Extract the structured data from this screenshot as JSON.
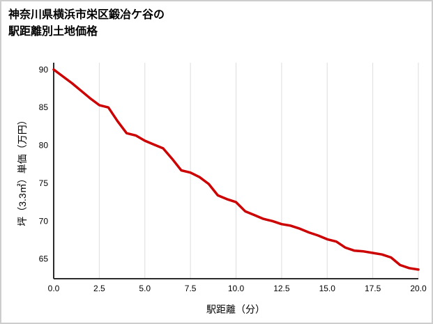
{
  "title": {
    "line1": "神奈川県横浜市栄区鍛冶ケ谷の",
    "line2": "駅距離別土地価格"
  },
  "chart_data": {
    "type": "line",
    "title": "神奈川県横浜市栄区鍛冶ケ谷の駅距離別土地価格",
    "xlabel": "駅距離（分）",
    "ylabel": "坪（3.3㎡）単価（万円）",
    "x": [
      0,
      0.5,
      1,
      1.5,
      2,
      2.5,
      3,
      3.5,
      4,
      4.5,
      5,
      5.5,
      6,
      6.5,
      7,
      7.5,
      8,
      8.5,
      9,
      9.5,
      10,
      10.5,
      11,
      11.5,
      12,
      12.5,
      13,
      13.5,
      14,
      14.5,
      15,
      15.5,
      16,
      16.5,
      17,
      17.5,
      18,
      18.5,
      19,
      19.5,
      20
    ],
    "y": [
      90,
      89.1,
      88.2,
      87.2,
      86.2,
      85.3,
      85.0,
      83.2,
      81.6,
      81.3,
      80.6,
      80.1,
      79.6,
      78.2,
      76.7,
      76.4,
      75.8,
      74.9,
      73.4,
      72.9,
      72.5,
      71.3,
      70.8,
      70.3,
      70.0,
      69.6,
      69.4,
      69.0,
      68.5,
      68.1,
      67.6,
      67.3,
      66.5,
      66.1,
      66.0,
      65.8,
      65.6,
      65.2,
      64.2,
      63.8,
      63.6
    ],
    "xlim": [
      0,
      20
    ],
    "ylim": [
      62.4,
      90.9
    ],
    "x_ticks": [
      0,
      2.5,
      5,
      7.5,
      10,
      12.5,
      15,
      17.5,
      20
    ],
    "x_tick_labels": [
      "0.0",
      "2.5",
      "5.0",
      "7.5",
      "10.0",
      "12.5",
      "15.0",
      "17.5",
      "20.0"
    ],
    "y_ticks": [
      65,
      70,
      75,
      80,
      85,
      90
    ],
    "y_tick_labels": [
      "65",
      "70",
      "75",
      "80",
      "85",
      "90"
    ],
    "line_color": "#cc0000",
    "grid": "vertical",
    "grid_color": "#dddddd",
    "axis_color": "#2b2b2b",
    "legend": "none"
  }
}
